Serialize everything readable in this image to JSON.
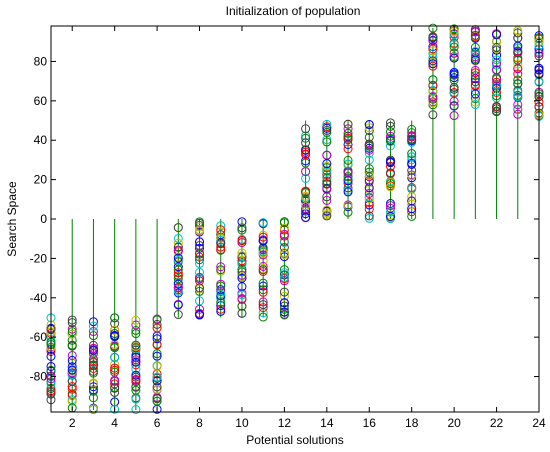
{
  "chart_data": {
    "type": "scatter",
    "title": "Initialization of population",
    "xlabel": "Potential solutions",
    "ylabel": "Search Space",
    "xlim": [
      1,
      24
    ],
    "ylim": [
      -98,
      98
    ],
    "xticks": [
      2,
      4,
      6,
      8,
      10,
      12,
      14,
      16,
      18,
      20,
      22,
      24
    ],
    "yticks": [
      -80,
      -60,
      -40,
      -20,
      0,
      20,
      40,
      60,
      80
    ],
    "marker": "circle",
    "stems": true,
    "grid": false,
    "legend": "none",
    "colors": [
      "#0000ff",
      "#008000",
      "#ff0000",
      "#00bfbf",
      "#bf00bf",
      "#bfbf00",
      "#404040"
    ],
    "stem_color": "#008000",
    "x": [
      1,
      2,
      3,
      4,
      5,
      6,
      7,
      8,
      9,
      10,
      11,
      12,
      13,
      14,
      15,
      16,
      17,
      18,
      19,
      20,
      21,
      22,
      23,
      24
    ],
    "groups": [
      {
        "x_range": [
          1,
          6
        ],
        "y_range": [
          -97,
          -50
        ]
      },
      {
        "x_range": [
          7,
          12
        ],
        "y_range": [
          -50,
          -1
        ]
      },
      {
        "x_range": [
          13,
          18
        ],
        "y_range": [
          0,
          50
        ]
      },
      {
        "x_range": [
          19,
          24
        ],
        "y_range": [
          52,
          97
        ]
      }
    ],
    "points_per_solution": 30
  }
}
